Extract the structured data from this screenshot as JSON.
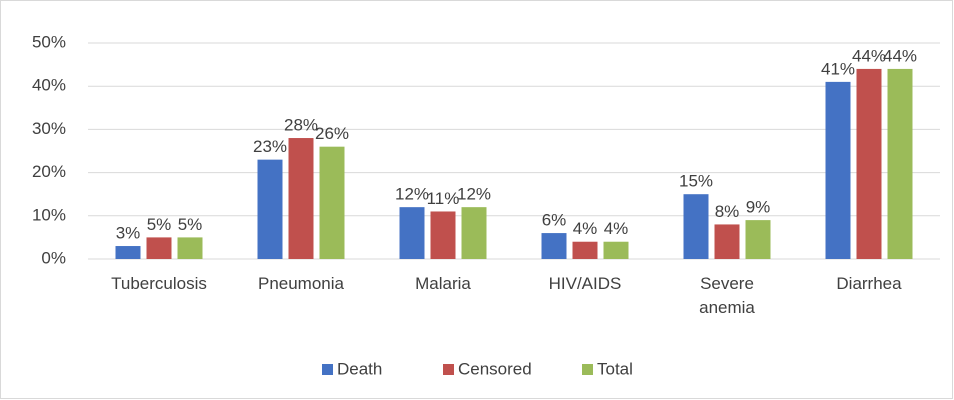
{
  "chart_data": {
    "type": "bar",
    "categories": [
      "Tuberculosis",
      "Pneumonia",
      "Malaria",
      "HIV/AIDS",
      "Severe anemia",
      "Diarrhea"
    ],
    "series": [
      {
        "name": "Death",
        "color": "#4472c4",
        "values": [
          3,
          23,
          12,
          6,
          15,
          41
        ],
        "value_labels": [
          "3%",
          "23%",
          "12%",
          "6%",
          "15%",
          "41%"
        ]
      },
      {
        "name": "Censored",
        "color": "#c0504d",
        "values": [
          5,
          28,
          11,
          4,
          8,
          44
        ],
        "value_labels": [
          "5%",
          "28%",
          "11%",
          "4%",
          "8%",
          "44%"
        ]
      },
      {
        "name": "Total",
        "color": "#9bbb59",
        "values": [
          5,
          26,
          12,
          4,
          9,
          44
        ],
        "value_labels": [
          "5%",
          "26%",
          "12%",
          "4%",
          "9%",
          "44%"
        ]
      }
    ],
    "ylim": [
      0,
      50
    ],
    "yticks": [
      {
        "value": 0,
        "label": "0%"
      },
      {
        "value": 10,
        "label": "10%"
      },
      {
        "value": 20,
        "label": "20%"
      },
      {
        "value": 30,
        "label": "30%"
      },
      {
        "value": 40,
        "label": "40%"
      },
      {
        "value": 50,
        "label": "50%"
      }
    ],
    "grid": true,
    "legend": "bottom"
  }
}
